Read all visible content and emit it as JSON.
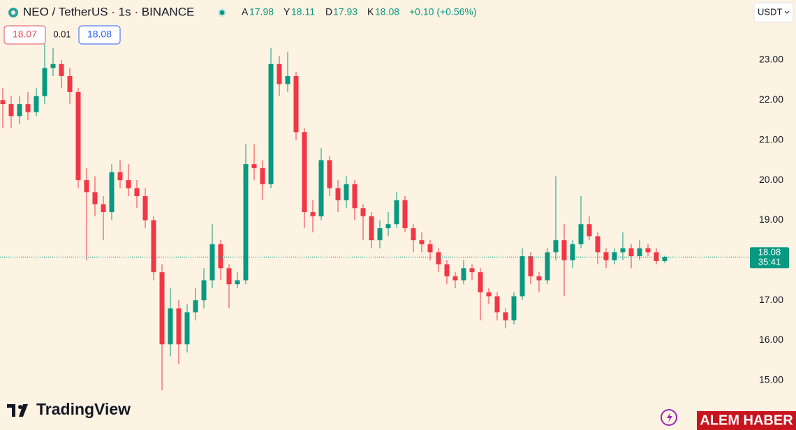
{
  "chart_data": {
    "type": "candlestick",
    "symbol": "NEO / TetherUS · 1s · BINANCE",
    "ohlc_labels": [
      "A",
      "Y",
      "D",
      "K"
    ],
    "change": "+0.10 (+0.56%)",
    "bid": 18.07,
    "spread": 0.01,
    "ask": 18.08,
    "currency": "USDT",
    "countdown": "35:41",
    "brand": "TradingView",
    "watermark": "ALEM HABER",
    "up_color": "#089981",
    "down_color": "#f23645",
    "ylim": [
      13.76,
      24.5
    ],
    "yticks": [
      {
        "value": 15,
        "label": "15.00"
      },
      {
        "value": 16,
        "label": "16.00"
      },
      {
        "value": 17,
        "label": "17.00"
      },
      {
        "value": 18,
        "label": "18.00"
      },
      {
        "value": 19,
        "label": "19.00"
      },
      {
        "value": 20,
        "label": "20.00"
      },
      {
        "value": 21,
        "label": "21.00"
      },
      {
        "value": 22,
        "label": "22.00"
      },
      {
        "value": 23,
        "label": "23.00"
      }
    ],
    "candles": [
      [
        22.0,
        22.3,
        21.3,
        21.9
      ],
      [
        21.9,
        22.1,
        21.3,
        21.6
      ],
      [
        21.6,
        22.1,
        21.4,
        21.9
      ],
      [
        21.9,
        22.2,
        21.5,
        21.7
      ],
      [
        21.7,
        22.3,
        21.6,
        22.1
      ],
      [
        22.1,
        23.4,
        21.9,
        22.8
      ],
      [
        22.8,
        23.3,
        22.6,
        22.9
      ],
      [
        22.9,
        23.0,
        22.3,
        22.6
      ],
      [
        22.6,
        22.8,
        21.9,
        22.2
      ],
      [
        22.2,
        22.3,
        19.8,
        20.0
      ],
      [
        20.0,
        20.3,
        18.0,
        19.7
      ],
      [
        19.7,
        20.1,
        19.1,
        19.4
      ],
      [
        19.4,
        19.6,
        18.5,
        19.2
      ],
      [
        19.2,
        20.4,
        19.0,
        20.2
      ],
      [
        20.2,
        20.5,
        19.8,
        20.0
      ],
      [
        20.0,
        20.4,
        19.6,
        19.8
      ],
      [
        19.8,
        20.0,
        19.3,
        19.6
      ],
      [
        19.6,
        19.8,
        18.8,
        19.0
      ],
      [
        19.0,
        19.1,
        17.5,
        17.7
      ],
      [
        17.7,
        17.9,
        14.75,
        15.9
      ],
      [
        15.9,
        17.3,
        15.6,
        16.8
      ],
      [
        16.8,
        17.0,
        15.4,
        15.9
      ],
      [
        15.9,
        16.9,
        15.7,
        16.7
      ],
      [
        16.7,
        17.3,
        16.5,
        17.0
      ],
      [
        17.0,
        17.8,
        16.8,
        17.5
      ],
      [
        17.5,
        18.9,
        17.3,
        18.4
      ],
      [
        18.4,
        18.5,
        17.5,
        17.8
      ],
      [
        17.8,
        17.9,
        16.8,
        17.4
      ],
      [
        17.4,
        17.7,
        17.3,
        17.5
      ],
      [
        17.5,
        20.9,
        17.4,
        20.4
      ],
      [
        20.4,
        20.9,
        20.0,
        20.3
      ],
      [
        20.3,
        20.5,
        19.5,
        19.9
      ],
      [
        19.9,
        23.3,
        19.8,
        22.9
      ],
      [
        22.9,
        23.1,
        22.1,
        22.4
      ],
      [
        22.4,
        23.2,
        22.2,
        22.6
      ],
      [
        22.6,
        22.7,
        21.0,
        21.2
      ],
      [
        21.2,
        21.3,
        18.8,
        19.2
      ],
      [
        19.2,
        19.5,
        18.7,
        19.1
      ],
      [
        19.1,
        20.8,
        19.0,
        20.5
      ],
      [
        20.5,
        20.6,
        19.6,
        19.8
      ],
      [
        19.8,
        20.0,
        19.2,
        19.5
      ],
      [
        19.5,
        20.1,
        19.3,
        19.9
      ],
      [
        19.9,
        20.0,
        19.0,
        19.3
      ],
      [
        19.3,
        19.4,
        18.5,
        19.1
      ],
      [
        19.1,
        19.2,
        18.3,
        18.5
      ],
      [
        18.5,
        19.0,
        18.3,
        18.8
      ],
      [
        18.8,
        19.2,
        18.6,
        18.9
      ],
      [
        18.9,
        19.7,
        18.8,
        19.5
      ],
      [
        19.5,
        19.6,
        18.7,
        18.8
      ],
      [
        18.8,
        18.9,
        18.2,
        18.5
      ],
      [
        18.5,
        18.7,
        18.2,
        18.4
      ],
      [
        18.4,
        18.5,
        18.0,
        18.2
      ],
      [
        18.2,
        18.3,
        17.7,
        17.9
      ],
      [
        17.9,
        18.0,
        17.4,
        17.6
      ],
      [
        17.6,
        17.7,
        17.3,
        17.5
      ],
      [
        17.5,
        18.0,
        17.4,
        17.8
      ],
      [
        17.8,
        17.9,
        17.5,
        17.7
      ],
      [
        17.7,
        17.8,
        16.5,
        17.2
      ],
      [
        17.2,
        17.3,
        16.9,
        17.1
      ],
      [
        17.1,
        17.2,
        16.5,
        16.7
      ],
      [
        16.7,
        16.8,
        16.3,
        16.5
      ],
      [
        16.5,
        17.2,
        16.4,
        17.1
      ],
      [
        17.1,
        18.3,
        17.0,
        18.1
      ],
      [
        18.1,
        18.2,
        17.4,
        17.6
      ],
      [
        17.6,
        17.7,
        17.2,
        17.5
      ],
      [
        17.5,
        18.3,
        17.4,
        18.2
      ],
      [
        18.2,
        20.1,
        18.0,
        18.5
      ],
      [
        18.5,
        18.9,
        17.1,
        18.0
      ],
      [
        18.0,
        18.5,
        17.8,
        18.4
      ],
      [
        18.4,
        19.6,
        18.3,
        18.9
      ],
      [
        18.9,
        19.1,
        18.5,
        18.6
      ],
      [
        18.6,
        18.7,
        17.9,
        18.2
      ],
      [
        18.2,
        18.3,
        17.8,
        18.0
      ],
      [
        18.0,
        18.3,
        17.9,
        18.2
      ],
      [
        18.2,
        18.7,
        18.0,
        18.3
      ],
      [
        18.3,
        18.4,
        17.8,
        18.1
      ],
      [
        18.1,
        18.5,
        18.0,
        18.3
      ],
      [
        18.3,
        18.4,
        18.1,
        18.2
      ],
      [
        18.2,
        18.3,
        17.9,
        17.98
      ],
      [
        17.98,
        18.11,
        17.93,
        18.08
      ]
    ]
  }
}
